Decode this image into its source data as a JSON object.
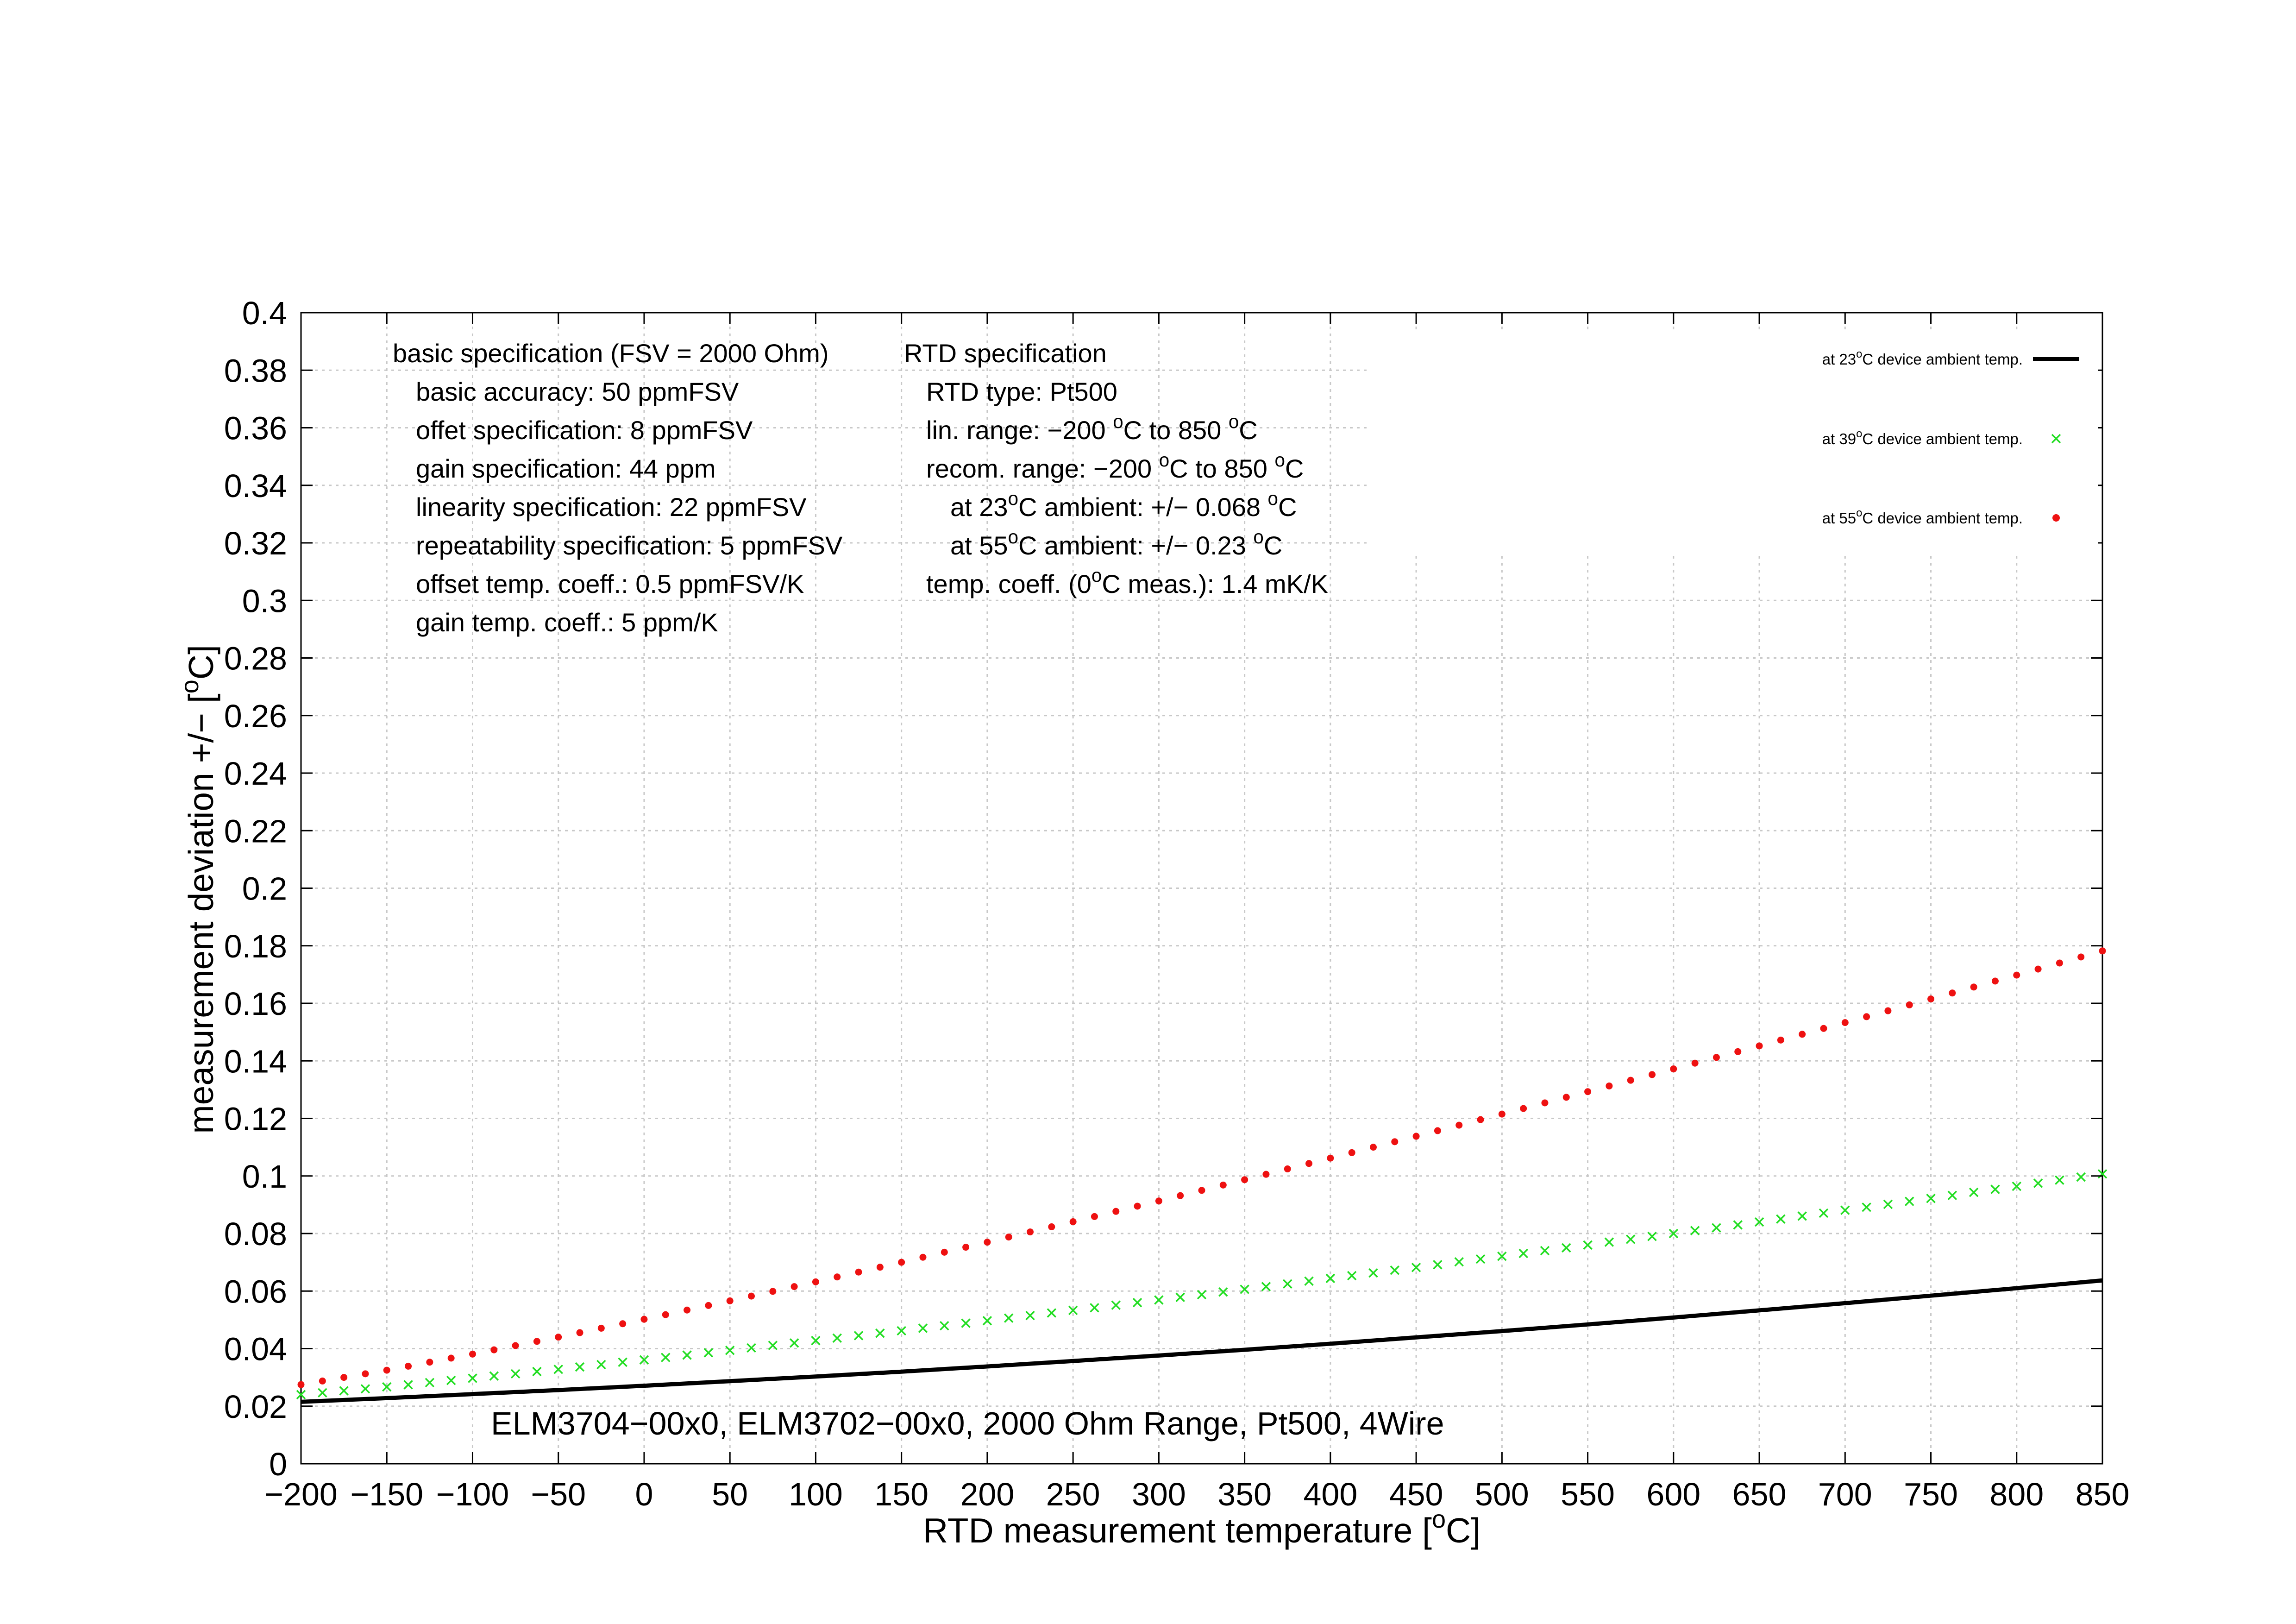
{
  "chart_data": {
    "type": "line",
    "title": "ELM3704−00x0, ELM3702−00x0, 2000 Ohm Range, Pt500, 4Wire",
    "xlabel": {
      "text": "RTD measurement temperature [",
      "sup": "o",
      "text_after": "C]"
    },
    "ylabel": {
      "text": "measurement deviation +/− [",
      "sup": "o",
      "text_after": "C]"
    },
    "xlim": [
      -200,
      850
    ],
    "ylim": [
      0,
      0.4
    ],
    "x_ticks": [
      -200,
      -150,
      -100,
      -50,
      0,
      50,
      100,
      150,
      200,
      250,
      300,
      350,
      400,
      450,
      500,
      550,
      600,
      650,
      700,
      750,
      800,
      850
    ],
    "x_tick_labels": [
      "−200",
      "−150",
      "−100",
      "−50",
      "0",
      "50",
      "100",
      "150",
      "200",
      "250",
      "300",
      "350",
      "400",
      "450",
      "500",
      "550",
      "600",
      "650",
      "700",
      "750",
      "800",
      "850"
    ],
    "y_ticks": [
      0,
      0.02,
      0.04,
      0.06,
      0.08,
      0.1,
      0.12,
      0.14,
      0.16,
      0.18,
      0.2,
      0.22,
      0.24,
      0.26,
      0.28,
      0.3,
      0.32,
      0.34,
      0.36,
      0.38,
      0.4
    ],
    "y_tick_labels": [
      "0",
      "0.02",
      "0.04",
      "0.06",
      "0.08",
      "0.1",
      "0.12",
      "0.14",
      "0.16",
      "0.18",
      "0.2",
      "0.22",
      "0.24",
      "0.26",
      "0.28",
      "0.3",
      "0.32",
      "0.34",
      "0.36",
      "0.38",
      "0.4"
    ],
    "grid": true,
    "legend_position": "top-right",
    "series": [
      {
        "name": {
          "pre": "at 23",
          "sup": "o",
          "post": "C device ambient temp."
        },
        "style": "line",
        "color": "#000000",
        "x": [
          -200,
          -150,
          -100,
          -50,
          0,
          50,
          100,
          150,
          200,
          250,
          300,
          350,
          400,
          450,
          500,
          550,
          600,
          650,
          700,
          750,
          800,
          850
        ],
        "y": [
          0.0215,
          0.0228,
          0.0242,
          0.0256,
          0.0271,
          0.0287,
          0.0303,
          0.032,
          0.0338,
          0.0357,
          0.0376,
          0.0396,
          0.0417,
          0.0439,
          0.0461,
          0.0484,
          0.0508,
          0.0533,
          0.0558,
          0.0584,
          0.061,
          0.0637
        ]
      },
      {
        "name": {
          "pre": "at 39",
          "sup": "o",
          "post": "C device ambient temp."
        },
        "style": "x-markers",
        "color": "#22dd22",
        "x": [
          -200,
          -150,
          -100,
          -50,
          0,
          50,
          100,
          150,
          200,
          250,
          300,
          350,
          400,
          450,
          500,
          550,
          600,
          650,
          700,
          750,
          800,
          850
        ],
        "y": [
          0.024,
          0.0267,
          0.0297,
          0.0328,
          0.0361,
          0.0394,
          0.0428,
          0.0462,
          0.0497,
          0.0533,
          0.0569,
          0.0606,
          0.0644,
          0.0682,
          0.0721,
          0.076,
          0.08,
          0.084,
          0.0881,
          0.0922,
          0.0964,
          0.1007
        ]
      },
      {
        "name": {
          "pre": "at 55",
          "sup": "o",
          "post": "C device ambient temp."
        },
        "style": "dot-markers",
        "color": "#ee1111",
        "x": [
          -200,
          -150,
          -100,
          -50,
          0,
          50,
          100,
          150,
          200,
          250,
          300,
          350,
          400,
          450,
          500,
          550,
          600,
          650,
          700,
          750,
          800,
          850
        ],
        "y": [
          0.0275,
          0.0325,
          0.0381,
          0.044,
          0.0502,
          0.0566,
          0.0632,
          0.07,
          0.077,
          0.0841,
          0.0913,
          0.0987,
          0.1062,
          0.1138,
          0.1215,
          0.1293,
          0.1372,
          0.1452,
          0.1533,
          0.1615,
          0.1698,
          0.1782
        ]
      }
    ],
    "annotations": {
      "basic": [
        "basic specification (FSV = 2000 Ohm)",
        "basic accuracy: 50 ppmFSV",
        "offet specification: 8 ppmFSV",
        "gain specification: 44 ppm",
        "linearity specification: 22 ppmFSV",
        "repeatability specification: 5 ppmFSV",
        "offset temp. coeff.: 0.5 ppmFSV/K",
        "gain temp. coeff.: 5 ppm/K"
      ],
      "rtd": [
        {
          "parts": [
            [
              "RTD specification",
              false
            ]
          ]
        },
        {
          "parts": [
            [
              "RTD type: Pt500",
              false
            ]
          ]
        },
        {
          "parts": [
            [
              "lin. range: −200 ",
              false
            ],
            [
              "o",
              true
            ],
            [
              "C to 850 ",
              false
            ],
            [
              "o",
              true
            ],
            [
              "C",
              false
            ]
          ]
        },
        {
          "parts": [
            [
              "recom. range: −200 ",
              false
            ],
            [
              "o",
              true
            ],
            [
              "C to 850 ",
              false
            ],
            [
              "o",
              true
            ],
            [
              "C",
              false
            ]
          ]
        },
        {
          "parts": [
            [
              "at 23",
              false
            ],
            [
              "o",
              true
            ],
            [
              "C ambient: +/− 0.068 ",
              false
            ],
            [
              "o",
              true
            ],
            [
              "C",
              false
            ]
          ]
        },
        {
          "parts": [
            [
              "at 55",
              false
            ],
            [
              "o",
              true
            ],
            [
              "C ambient: +/− 0.23 ",
              false
            ],
            [
              "o",
              true
            ],
            [
              "C",
              false
            ]
          ]
        },
        {
          "parts": [
            [
              "temp. coeff. (0",
              false
            ],
            [
              "o",
              true
            ],
            [
              "C meas.): 1.4 mK/K",
              false
            ]
          ]
        }
      ]
    }
  }
}
